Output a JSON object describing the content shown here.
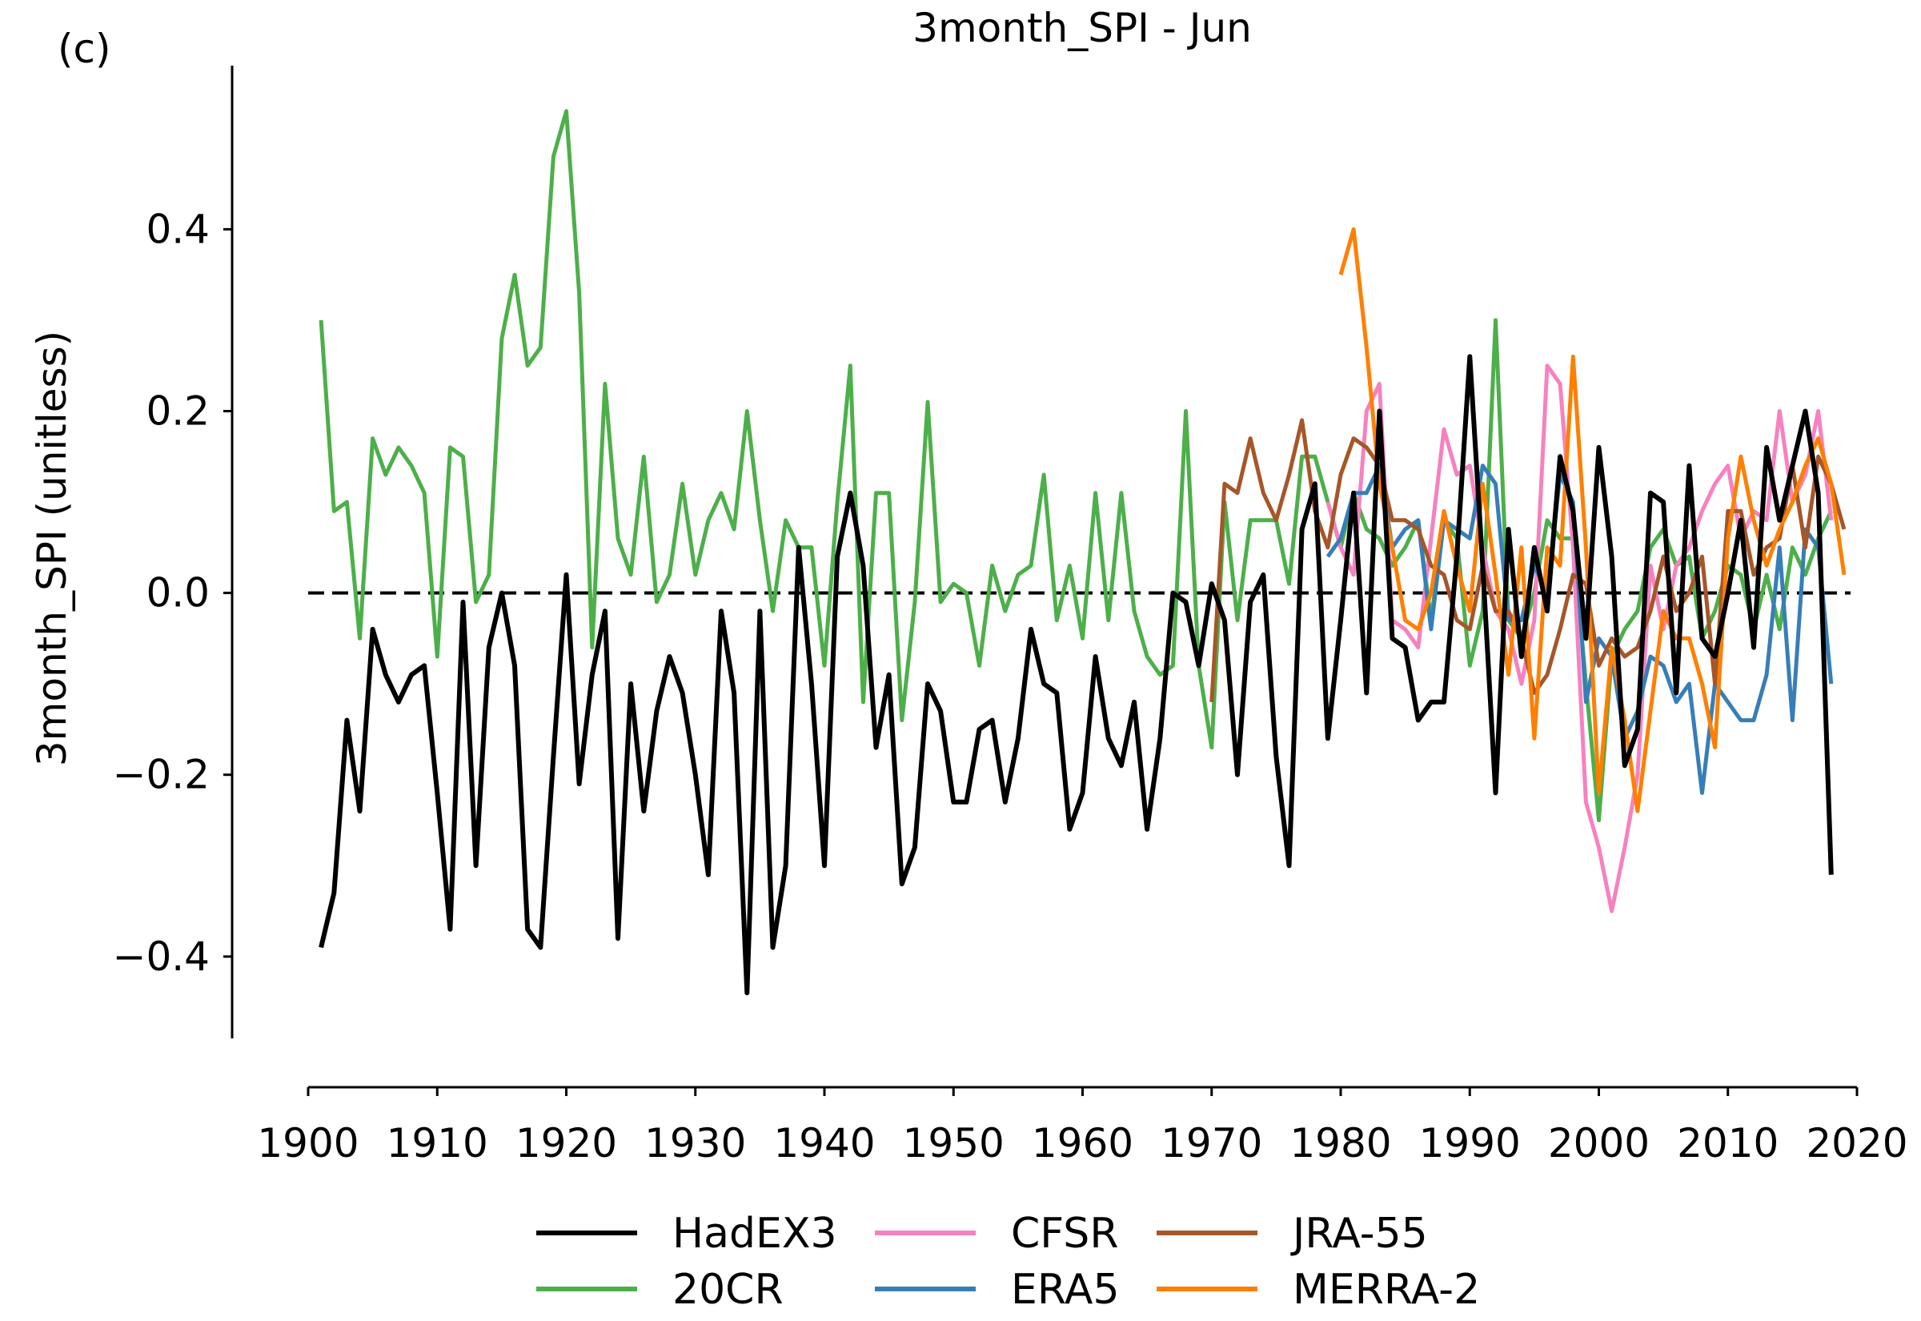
{
  "panel_label": "(c)",
  "chart_data": {
    "type": "line",
    "title": "3month_SPI - Jun",
    "xlabel": "",
    "ylabel": "3month_SPI (unitless)",
    "xlim": [
      1900,
      2020
    ],
    "ylim": [
      -0.49,
      0.58
    ],
    "x_ticks": [
      1900,
      1910,
      1920,
      1930,
      1940,
      1950,
      1960,
      1970,
      1980,
      1990,
      2000,
      2010,
      2020
    ],
    "y_ticks": [
      -0.4,
      -0.2,
      0.0,
      0.2,
      0.4
    ],
    "y_tick_labels": [
      "−0.4",
      "−0.2",
      "0.0",
      "0.2",
      "0.4"
    ],
    "reference_line": {
      "y": 0.0,
      "style": "dashed",
      "color": "#000000"
    },
    "grid": false,
    "legend_position": "bottom-center",
    "series": [
      {
        "name": "20CR",
        "color": "#4daf4a",
        "x_start": 1901,
        "values": [
          0.3,
          0.09,
          0.1,
          -0.05,
          0.17,
          0.13,
          0.16,
          0.14,
          0.11,
          -0.07,
          0.16,
          0.15,
          -0.01,
          0.02,
          0.28,
          0.35,
          0.25,
          0.27,
          0.48,
          0.53,
          0.33,
          -0.06,
          0.23,
          0.06,
          0.02,
          0.15,
          -0.01,
          0.02,
          0.12,
          0.02,
          0.08,
          0.11,
          0.07,
          0.2,
          0.08,
          -0.02,
          0.08,
          0.05,
          0.05,
          -0.08,
          0.1,
          0.25,
          -0.12,
          0.11,
          0.11,
          -0.14,
          -0.01,
          0.21,
          -0.01,
          0.01,
          0.0,
          -0.08,
          0.03,
          -0.02,
          0.02,
          0.03,
          0.13,
          -0.03,
          0.03,
          -0.05,
          0.11,
          -0.03,
          0.11,
          -0.02,
          -0.07,
          -0.09,
          -0.08,
          0.2,
          -0.08,
          -0.17,
          0.1,
          -0.03,
          0.08,
          0.08,
          0.08,
          0.01,
          0.15,
          0.15,
          0.1,
          0.05,
          0.11,
          0.07,
          0.06,
          0.03,
          0.05,
          0.08,
          -0.03,
          0.08,
          0.06,
          -0.08,
          -0.02,
          0.3,
          -0.03,
          -0.05,
          0.0,
          0.08,
          0.06,
          0.06,
          -0.1,
          -0.25,
          -0.07,
          -0.04,
          -0.02,
          0.05,
          0.07,
          0.03,
          0.04,
          -0.05,
          -0.02,
          0.03,
          0.02,
          -0.04,
          0.02,
          -0.04,
          0.05,
          0.02,
          0.06,
          0.09
        ]
      },
      {
        "name": "CFSR",
        "color": "#f781bf",
        "x_start": 1979,
        "values": [
          0.1,
          0.05,
          0.02,
          0.2,
          0.23,
          -0.03,
          -0.04,
          -0.06,
          0.06,
          0.18,
          0.13,
          0.14,
          0.05,
          -0.02,
          -0.04,
          -0.1,
          -0.03,
          0.25,
          0.23,
          0.05,
          -0.23,
          -0.28,
          -0.35,
          -0.28,
          -0.2,
          0.03,
          -0.04,
          0.03,
          0.05,
          0.09,
          0.12,
          0.14,
          0.06,
          0.09,
          0.08,
          0.2,
          0.1,
          0.13,
          0.2,
          0.08
        ]
      },
      {
        "name": "ERA5",
        "color": "#377eb8",
        "x_start": 1979,
        "values": [
          0.04,
          0.06,
          0.11,
          0.11,
          0.14,
          0.05,
          0.07,
          0.08,
          -0.04,
          0.08,
          0.07,
          0.06,
          0.14,
          0.12,
          -0.03,
          -0.03,
          0.03,
          0.0,
          0.13,
          0.1,
          -0.12,
          -0.05,
          -0.07,
          -0.16,
          -0.13,
          -0.07,
          -0.08,
          -0.12,
          -0.1,
          -0.22,
          -0.1,
          -0.12,
          -0.14,
          -0.14,
          -0.09,
          0.05,
          -0.14,
          0.07,
          0.05,
          -0.1
        ]
      },
      {
        "name": "JRA-55",
        "color": "#a65628",
        "x_start": 1970,
        "values": [
          -0.12,
          0.12,
          0.11,
          0.17,
          0.11,
          0.08,
          0.13,
          0.19,
          0.09,
          0.05,
          0.13,
          0.17,
          0.16,
          0.14,
          0.08,
          0.08,
          0.07,
          0.03,
          0.02,
          -0.03,
          -0.04,
          0.03,
          -0.02,
          -0.02,
          -0.05,
          -0.11,
          -0.09,
          -0.04,
          0.02,
          0.01,
          -0.08,
          -0.05,
          -0.07,
          -0.06,
          -0.02,
          0.04,
          -0.02,
          0.0,
          0.04,
          -0.1,
          0.09,
          0.09,
          0.02,
          0.05,
          0.06,
          0.14,
          0.05,
          0.15,
          0.12,
          0.07
        ]
      },
      {
        "name": "MERRA-2",
        "color": "#ff7f00",
        "x_start": 1980,
        "values": [
          0.35,
          0.4,
          0.27,
          0.12,
          0.05,
          -0.03,
          -0.04,
          0.0,
          0.09,
          0.03,
          -0.02,
          0.12,
          0.02,
          -0.09,
          0.05,
          -0.16,
          0.05,
          0.03,
          0.26,
          0.05,
          -0.22,
          -0.06,
          -0.14,
          -0.24,
          -0.13,
          -0.02,
          -0.05,
          -0.05,
          -0.1,
          -0.17,
          0.06,
          0.15,
          0.08,
          0.03,
          0.07,
          0.1,
          0.14,
          0.17,
          0.12,
          0.02
        ]
      },
      {
        "name": "HadEX3",
        "color": "#000000",
        "x_start": 1901,
        "values": [
          -0.39,
          -0.33,
          -0.14,
          -0.24,
          -0.04,
          -0.09,
          -0.12,
          -0.09,
          -0.08,
          -0.22,
          -0.37,
          -0.01,
          -0.3,
          -0.06,
          0.0,
          -0.08,
          -0.37,
          -0.39,
          -0.18,
          0.02,
          -0.21,
          -0.09,
          -0.02,
          -0.38,
          -0.1,
          -0.24,
          -0.13,
          -0.07,
          -0.11,
          -0.2,
          -0.31,
          -0.02,
          -0.11,
          -0.44,
          -0.02,
          -0.39,
          -0.3,
          0.05,
          -0.1,
          -0.3,
          0.04,
          0.11,
          0.03,
          -0.17,
          -0.09,
          -0.32,
          -0.28,
          -0.1,
          -0.13,
          -0.23,
          -0.23,
          -0.15,
          -0.14,
          -0.23,
          -0.16,
          -0.04,
          -0.1,
          -0.11,
          -0.26,
          -0.22,
          -0.07,
          -0.16,
          -0.19,
          -0.12,
          -0.26,
          -0.16,
          0.0,
          -0.01,
          -0.08,
          0.01,
          -0.03,
          -0.2,
          -0.01,
          0.02,
          -0.18,
          -0.3,
          0.07,
          0.12,
          -0.16,
          -0.03,
          0.11,
          -0.11,
          0.2,
          -0.05,
          -0.06,
          -0.14,
          -0.12,
          -0.12,
          0.04,
          0.26,
          0.03,
          -0.22,
          0.07,
          -0.07,
          0.05,
          -0.02,
          0.15,
          0.09,
          -0.05,
          0.16,
          0.04,
          -0.19,
          -0.15,
          0.11,
          0.1,
          -0.11,
          0.14,
          -0.05,
          -0.07,
          0.0,
          0.08,
          -0.06,
          0.16,
          0.08,
          0.14,
          0.2,
          0.11,
          -0.31
        ]
      }
    ],
    "legend_order": [
      "HadEX3",
      "20CR",
      "CFSR",
      "ERA5",
      "JRA-55",
      "MERRA-2"
    ]
  }
}
